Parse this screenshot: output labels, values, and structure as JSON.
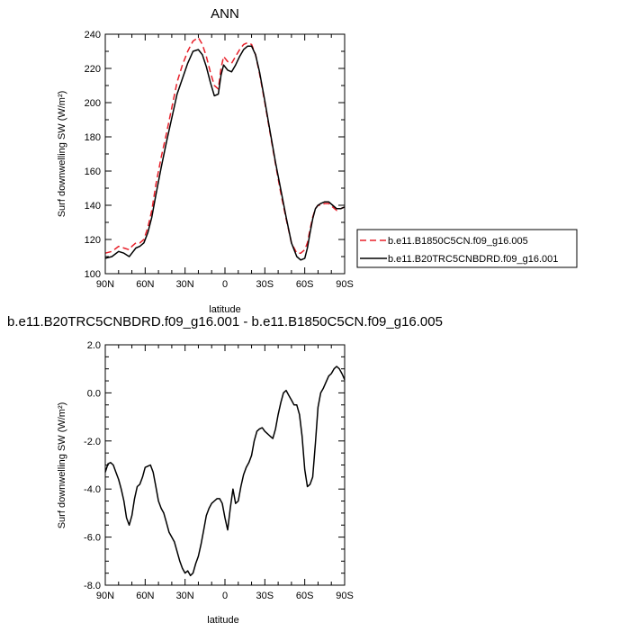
{
  "chart_data": [
    {
      "type": "line",
      "title": "ANN",
      "xlabel": "latitude",
      "ylabel": "Surf downwelling SW (W/m²)",
      "xlim": [
        90,
        -90
      ],
      "ylim": [
        100,
        240
      ],
      "x_ticks": [
        90,
        60,
        30,
        0,
        -30,
        -60,
        -90
      ],
      "x_tick_labels": [
        "90N",
        "60N",
        "30N",
        "0",
        "30S",
        "60S",
        "90S"
      ],
      "y_ticks": [
        100,
        120,
        140,
        160,
        180,
        200,
        220,
        240
      ],
      "y_tick_labels": [
        "100",
        "120",
        "140",
        "160",
        "180",
        "200",
        "220",
        "240"
      ],
      "legend": "right",
      "series": [
        {
          "name": "b.e11.B1850C5CN.f09_g16.005",
          "color": "#e8202a",
          "dash": "dashed",
          "x": [
            90,
            85,
            80,
            76,
            72,
            70,
            67,
            64,
            61,
            58,
            55,
            52,
            48,
            44,
            40,
            36,
            32,
            28,
            24,
            20,
            17,
            14,
            11,
            8,
            5,
            3,
            1,
            -2,
            -5,
            -8,
            -11,
            -14,
            -17,
            -20,
            -23,
            -26,
            -30,
            -34,
            -38,
            -42,
            -46,
            -50,
            -54,
            -57,
            -60,
            -62,
            -64,
            -66,
            -68,
            -70,
            -72,
            -75,
            -78,
            -81,
            -84,
            -87,
            -90
          ],
          "y": [
            112,
            113,
            116,
            115,
            114,
            116,
            118,
            118,
            120,
            127,
            137,
            152,
            168,
            182,
            197,
            212,
            222,
            230,
            236,
            238,
            234,
            227,
            218,
            210,
            208,
            220,
            227,
            224,
            223,
            227,
            231,
            234,
            235,
            234,
            228,
            217,
            200,
            182,
            164,
            147,
            132,
            118,
            112,
            112,
            114,
            118,
            126,
            133,
            138,
            140,
            140,
            141,
            141,
            139,
            137,
            138,
            139
          ]
        },
        {
          "name": "b.e11.B20TRC5CNBDRD.f09_g16.001",
          "color": "#000000",
          "dash": "solid",
          "x": [
            90,
            85,
            80,
            76,
            72,
            70,
            67,
            64,
            61,
            58,
            55,
            52,
            48,
            44,
            40,
            36,
            32,
            28,
            24,
            20,
            17,
            14,
            11,
            8,
            5,
            3,
            1,
            -2,
            -5,
            -8,
            -11,
            -14,
            -17,
            -20,
            -23,
            -26,
            -30,
            -34,
            -38,
            -42,
            -46,
            -50,
            -54,
            -57,
            -60,
            -62,
            -64,
            -66,
            -68,
            -70,
            -72,
            -75,
            -78,
            -81,
            -84,
            -87,
            -90
          ],
          "y": [
            109,
            110,
            113,
            112,
            110,
            112,
            115,
            116,
            118,
            124,
            133,
            146,
            162,
            177,
            191,
            205,
            214,
            223,
            230,
            231,
            228,
            221,
            212,
            204,
            205,
            216,
            222,
            219,
            218,
            222,
            227,
            231,
            233,
            233,
            228,
            218,
            201,
            183,
            165,
            149,
            133,
            118,
            110,
            108,
            109,
            115,
            124,
            132,
            138,
            140,
            141,
            142,
            142,
            140,
            138,
            138,
            139
          ]
        }
      ]
    },
    {
      "type": "line",
      "title": "b.e11.B20TRC5CNBDRD.f09_g16.001 - b.e11.B1850C5CN.f09_g16.005",
      "xlabel": "latitude",
      "ylabel": "Surf downwelling SW (W/m²)",
      "xlim": [
        90,
        -90
      ],
      "ylim": [
        -8.0,
        2.0
      ],
      "x_ticks": [
        90,
        60,
        30,
        0,
        -30,
        -60,
        -90
      ],
      "x_tick_labels": [
        "90N",
        "60N",
        "30N",
        "0",
        "30S",
        "60S",
        "90S"
      ],
      "y_ticks": [
        -8,
        -6,
        -4,
        -2,
        0,
        2
      ],
      "y_tick_labels": [
        "-8.0",
        "-6.0",
        "-4.0",
        "-2.0",
        "0.0",
        "2.0"
      ],
      "series": [
        {
          "color": "#000000",
          "x": [
            90,
            88,
            86,
            84,
            82,
            80,
            78,
            76,
            74,
            72,
            70,
            68,
            66,
            64,
            62,
            60,
            58,
            56,
            54,
            52,
            50,
            48,
            46,
            44,
            42,
            40,
            38,
            36,
            34,
            32,
            30,
            28,
            26,
            24,
            22,
            20,
            18,
            16,
            14,
            12,
            10,
            8,
            6,
            4,
            2,
            0,
            -2,
            -4,
            -6,
            -8,
            -10,
            -12,
            -14,
            -16,
            -18,
            -20,
            -22,
            -24,
            -26,
            -28,
            -30,
            -32,
            -34,
            -36,
            -38,
            -40,
            -42,
            -44,
            -46,
            -48,
            -50,
            -52,
            -54,
            -56,
            -58,
            -60,
            -62,
            -64,
            -66,
            -68,
            -70,
            -72,
            -74,
            -76,
            -78,
            -80,
            -82,
            -84,
            -86,
            -88,
            -90
          ],
          "y": [
            -3.3,
            -2.95,
            -2.9,
            -3.0,
            -3.3,
            -3.6,
            -4.0,
            -4.5,
            -5.2,
            -5.5,
            -5.1,
            -4.4,
            -3.9,
            -3.8,
            -3.5,
            -3.1,
            -3.05,
            -3.0,
            -3.3,
            -3.9,
            -4.5,
            -4.8,
            -5.0,
            -5.4,
            -5.8,
            -6.0,
            -6.2,
            -6.6,
            -7.0,
            -7.3,
            -7.5,
            -7.4,
            -7.6,
            -7.5,
            -7.1,
            -6.8,
            -6.3,
            -5.7,
            -5.1,
            -4.8,
            -4.6,
            -4.5,
            -4.4,
            -4.4,
            -4.6,
            -5.2,
            -5.7,
            -4.8,
            -4.0,
            -4.6,
            -4.5,
            -3.9,
            -3.4,
            -3.1,
            -2.9,
            -2.6,
            -2.0,
            -1.6,
            -1.5,
            -1.45,
            -1.6,
            -1.7,
            -1.8,
            -1.9,
            -1.5,
            -0.9,
            -0.4,
            0.0,
            0.1,
            -0.1,
            -0.3,
            -0.5,
            -0.5,
            -0.9,
            -1.8,
            -3.2,
            -3.9,
            -3.8,
            -3.5,
            -2.1,
            -0.6,
            0.0,
            0.2,
            0.45,
            0.7,
            0.8,
            1.0,
            1.1,
            1.0,
            0.8,
            0.55
          ]
        }
      ]
    }
  ]
}
